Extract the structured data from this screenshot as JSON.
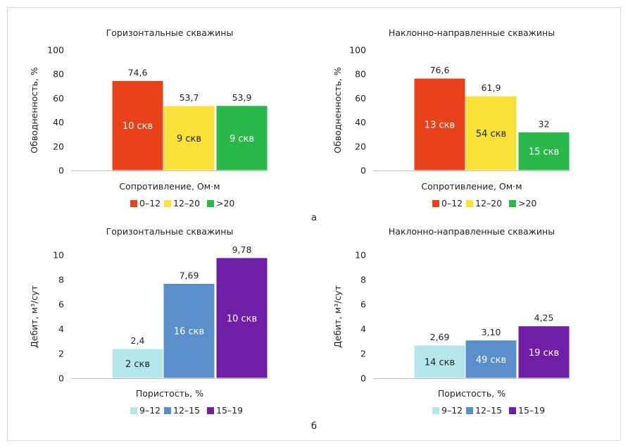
{
  "panel_labels": [
    "а",
    "б"
  ],
  "chart_data": [
    {
      "type": "bar",
      "title": "Горизонтальные скважины",
      "xlabel": "Сопротивление, Ом·м",
      "ylabel": "Обводненность, %",
      "ylim": [
        0,
        100
      ],
      "yticks": [
        "0",
        "20",
        "40",
        "60",
        "80",
        "100"
      ],
      "categories": [
        "0–12",
        "12–20",
        ">20"
      ],
      "values": [
        74.6,
        53.7,
        53.9
      ],
      "value_labels": [
        "74,6",
        "53,7",
        "53,9"
      ],
      "count_labels": [
        "10 скв",
        "9 скв",
        "9 скв"
      ],
      "colors": [
        "#e8421b",
        "#f8e23a",
        "#2bb84a"
      ],
      "count_colors": [
        "#ffffff",
        "#222222",
        "#ffffff"
      ],
      "grid": false,
      "legend": "bottom"
    },
    {
      "type": "bar",
      "title": "Наклонно-направленные скважины",
      "xlabel": "Сопротивление, Ом·м",
      "ylabel": "Обводненность, %",
      "ylim": [
        0,
        100
      ],
      "yticks": [
        "0",
        "20",
        "40",
        "60",
        "80",
        "100"
      ],
      "categories": [
        "0–12",
        "12–20",
        ">20"
      ],
      "values": [
        76.6,
        61.9,
        32
      ],
      "value_labels": [
        "76,6",
        "61,9",
        "32"
      ],
      "count_labels": [
        "13 скв",
        "54 скв",
        "15 скв"
      ],
      "colors": [
        "#e8421b",
        "#f8e23a",
        "#2bb84a"
      ],
      "count_colors": [
        "#ffffff",
        "#222222",
        "#ffffff"
      ],
      "grid": false,
      "legend": "bottom"
    },
    {
      "type": "bar",
      "title": "Горизонтальные скважины",
      "xlabel": "Пористость, %",
      "ylabel": "Дебит, м³/сут",
      "ylim": [
        0,
        10
      ],
      "yticks": [
        "0",
        "2",
        "4",
        "6",
        "8",
        "10"
      ],
      "categories": [
        "9–12",
        "12–15",
        "15–19"
      ],
      "values": [
        2.4,
        7.69,
        9.78
      ],
      "value_labels": [
        "2,4",
        "7,69",
        "9,78"
      ],
      "count_labels": [
        "2 скв",
        "16 скв",
        "10 скв"
      ],
      "colors": [
        "#b4e6ea",
        "#5b8fcb",
        "#6f1ea6"
      ],
      "count_colors": [
        "#222222",
        "#ffffff",
        "#ffffff"
      ],
      "grid": false,
      "legend": "bottom"
    },
    {
      "type": "bar",
      "title": "Наклонно-направленные скважины",
      "xlabel": "Пористость, %",
      "ylabel": "Дебит, м³/сут",
      "ylim": [
        0,
        10
      ],
      "yticks": [
        "0",
        "2",
        "4",
        "6",
        "8",
        "10"
      ],
      "categories": [
        "9–12",
        "12–15",
        "15–19"
      ],
      "values": [
        2.69,
        3.1,
        4.25
      ],
      "value_labels": [
        "2,69",
        "3,10",
        "4,25"
      ],
      "count_labels": [
        "14 скв",
        "49 скв",
        "19 скв"
      ],
      "colors": [
        "#b4e6ea",
        "#5b8fcb",
        "#6f1ea6"
      ],
      "count_colors": [
        "#222222",
        "#ffffff",
        "#ffffff"
      ],
      "grid": false,
      "legend": "bottom"
    }
  ]
}
